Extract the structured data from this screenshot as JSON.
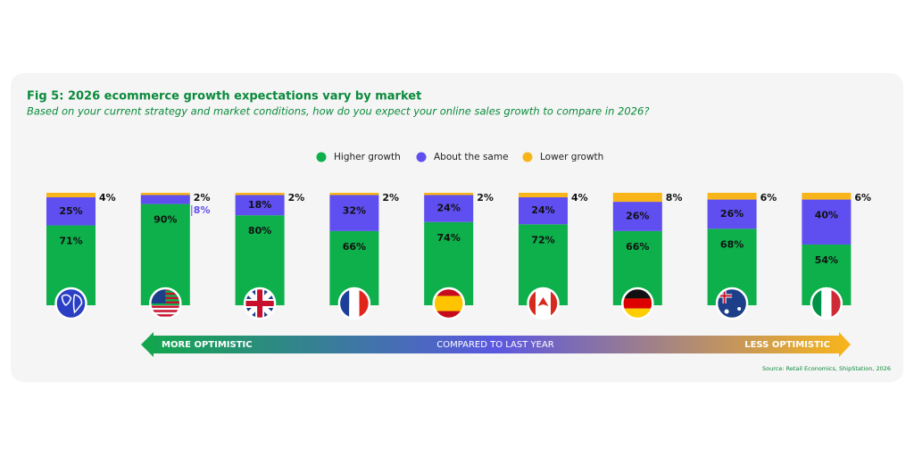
{
  "chart_data": {
    "type": "stacked-bar",
    "title": "Fig 5: 2026 ecommerce growth expectations vary by market",
    "subtitle": "Based on your current strategy and market conditions, how do you expect your online sales growth to compare in 2026?",
    "categories": [
      null,
      null,
      null,
      null,
      null,
      null,
      null,
      null,
      null
    ],
    "series": [
      {
        "name": "Higher growth",
        "color": "#0db04b",
        "values": [
          71,
          90,
          80,
          66,
          74,
          72,
          66,
          68,
          54
        ],
        "value_labels": [
          "71%",
          "90%",
          "80%",
          "66%",
          "74%",
          "72%",
          "66%",
          "68%",
          "54%"
        ]
      },
      {
        "name": "About the same",
        "color": "#5f4ef0",
        "values": [
          25,
          8,
          18,
          32,
          24,
          24,
          26,
          26,
          40
        ],
        "value_labels": [
          "25%",
          "8%",
          "18%",
          "32%",
          "24%",
          "24%",
          "26%",
          "26%",
          "40%"
        ]
      },
      {
        "name": "Lower growth",
        "color": "#f8b51a",
        "values": [
          4,
          2,
          2,
          2,
          2,
          4,
          8,
          6,
          6
        ],
        "value_labels": [
          "4%",
          "2%",
          "2%",
          "2%",
          "2%",
          "4%",
          "8%",
          "6%",
          "6%"
        ]
      }
    ],
    "arrow_left": "MORE OPTIMISTIC",
    "arrow_center": "COMPARED TO LAST YEAR",
    "arrow_right": "LESS OPTIMISTIC",
    "source": "Source: Retail Economics, ShipStation, 2026"
  }
}
